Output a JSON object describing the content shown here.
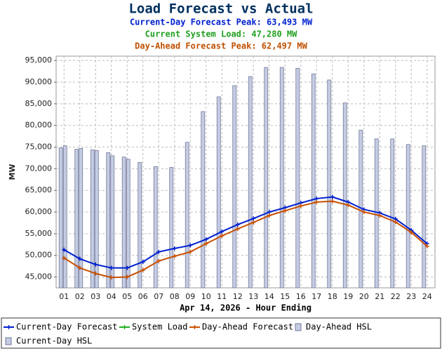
{
  "chart_data": {
    "type": "combo",
    "title": "Load Forecast vs Actual",
    "subtitles": [
      {
        "text": "Current-Day Forecast Peak:  63,493 MW",
        "color": "#0020d0"
      },
      {
        "text": "Current System Load:  47,280 MW",
        "color": "#20a020"
      },
      {
        "text": "Day-Ahead Forecast Peak:  62,497 MW",
        "color": "#c05000"
      }
    ],
    "y_label": "MW",
    "x_label": "Apr 14, 2026 - Hour Ending",
    "categories": [
      "01",
      "02",
      "03",
      "04",
      "05",
      "06",
      "07",
      "08",
      "09",
      "10",
      "11",
      "12",
      "13",
      "14",
      "15",
      "16",
      "17",
      "18",
      "19",
      "20",
      "21",
      "22",
      "23",
      "24"
    ],
    "ylim": [
      42500,
      96000
    ],
    "yticks": [
      {
        "value": 45000,
        "label": "45,000"
      },
      {
        "value": 50000,
        "label": "50,000"
      },
      {
        "value": 55000,
        "label": "55,000"
      },
      {
        "value": 60000,
        "label": "60,000"
      },
      {
        "value": 65000,
        "label": "65,000"
      },
      {
        "value": 70000,
        "label": "70,000"
      },
      {
        "value": 75000,
        "label": "75,000"
      },
      {
        "value": 80000,
        "label": "80,000"
      },
      {
        "value": 85000,
        "label": "85,000"
      },
      {
        "value": 90000,
        "label": "90,000"
      },
      {
        "value": 95000,
        "label": "95,000"
      }
    ],
    "grid": true,
    "series": [
      {
        "name": "Current-Day Forecast",
        "type": "line",
        "color": "#0020d0",
        "values": [
          51300,
          49200,
          47900,
          47100,
          47100,
          48500,
          50800,
          51600,
          52300,
          53700,
          55500,
          57100,
          58500,
          60000,
          61000,
          62100,
          63100,
          63493,
          62300,
          60600,
          59800,
          58400,
          55800,
          52700
        ]
      },
      {
        "name": "System Load",
        "type": "line",
        "color": "#20b020",
        "values": [
          null,
          null,
          null,
          null,
          null,
          null,
          null,
          null,
          null,
          null,
          null,
          null,
          null,
          null,
          null,
          null,
          null,
          null,
          null,
          null,
          null,
          null,
          null,
          null
        ]
      },
      {
        "name": "Day-Ahead Forecast",
        "type": "line",
        "color": "#c85000",
        "values": [
          49400,
          47100,
          45800,
          44900,
          45000,
          46600,
          48700,
          49800,
          50800,
          52700,
          54500,
          56100,
          57600,
          59200,
          60300,
          61400,
          62300,
          62497,
          61600,
          60000,
          59200,
          57700,
          55300,
          52100
        ]
      },
      {
        "name": "Day-Ahead HSL",
        "type": "bar",
        "color": "#c5cce2",
        "values": [
          74800,
          74500,
          74350,
          73700,
          72700,
          71450,
          70500,
          70300,
          76100,
          83200,
          86600,
          89200,
          91300,
          93400,
          93400,
          93200,
          91900,
          90500,
          85200,
          78900,
          76900,
          76900,
          75600,
          75300
        ]
      },
      {
        "name": "Current-Day HSL",
        "type": "bar",
        "color": "#c5cce2",
        "values": [
          75300,
          74700,
          74200,
          73000,
          72200,
          null,
          null,
          null,
          null,
          null,
          null,
          null,
          null,
          null,
          null,
          null,
          null,
          null,
          null,
          null,
          null,
          null,
          null,
          null
        ]
      }
    ]
  }
}
